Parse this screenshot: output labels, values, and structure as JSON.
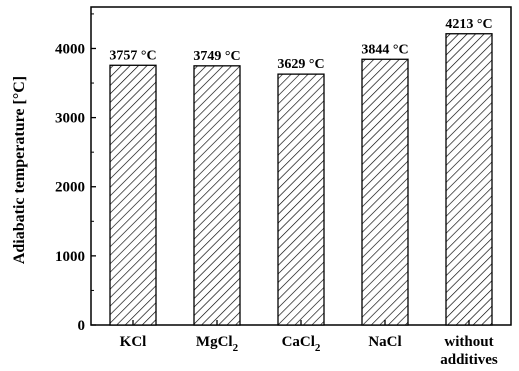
{
  "chart_data": {
    "type": "bar",
    "categories": [
      "KCl",
      "MgCl2",
      "CaCl2",
      "NaCl",
      "without additives"
    ],
    "category_labels": [
      {
        "main": "KCl",
        "sub": ""
      },
      {
        "main": "MgCl",
        "sub": "2"
      },
      {
        "main": "CaCl",
        "sub": "2"
      },
      {
        "main": "NaCl",
        "sub": ""
      },
      {
        "main": "without",
        "line2": "additives"
      }
    ],
    "values": [
      3757,
      3749,
      3629,
      3844,
      4213
    ],
    "data_labels": [
      "3757 °C",
      "3749 °C",
      "3629 °C",
      "3844 °C",
      "4213 °C"
    ],
    "title": "",
    "xlabel": "",
    "ylabel": "Adiabatic temperature [°C]",
    "ylim": [
      0,
      4600
    ],
    "yticks": [
      0,
      1000,
      2000,
      3000,
      4000
    ],
    "ytick_labels": [
      "0",
      "1000",
      "2000",
      "3000",
      "4000"
    ],
    "grid": false,
    "bar_fill": "hatched",
    "colors": {
      "axis": "#000000",
      "bar_edge": "#000000",
      "hatch": "#000000",
      "background": "#ffffff"
    }
  }
}
